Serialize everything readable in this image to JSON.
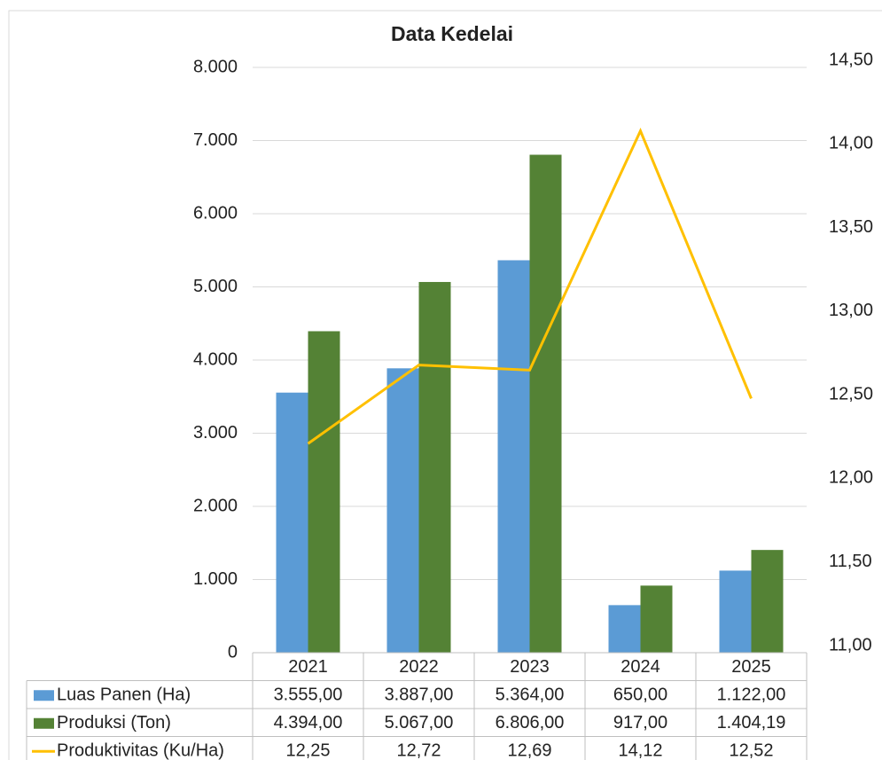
{
  "chart_data": {
    "type": "bar-line",
    "title": "Data Kedelai",
    "categories": [
      "2021",
      "2022",
      "2023",
      "2024",
      "2025"
    ],
    "series": [
      {
        "name": "Luas Panen (Ha)",
        "type": "bar",
        "color": "#5b9bd5",
        "values": [
          3555,
          3887,
          5364,
          650,
          1122
        ],
        "value_labels": [
          "3.555,00",
          "3.887,00",
          "5.364,00",
          "650,00",
          "1.122,00"
        ]
      },
      {
        "name": "Produksi (Ton)",
        "type": "bar",
        "color": "#548235",
        "values": [
          4394,
          5067,
          6806,
          917,
          1404.19
        ],
        "value_labels": [
          "4.394,00",
          "5.067,00",
          "6.806,00",
          "917,00",
          "1.404,19"
        ]
      },
      {
        "name": "Produktivitas (Ku/Ha)",
        "type": "line",
        "axis": "y2",
        "color": "#ffc000",
        "values": [
          12.25,
          12.72,
          12.69,
          14.12,
          12.52
        ],
        "value_labels": [
          "12,25",
          "12,72",
          "12,69",
          "14,12",
          "12,52"
        ]
      }
    ],
    "ylim": [
      0,
      8000
    ],
    "yticks": [
      0,
      {
        "value": 1000,
        "label": "1.000"
      },
      {
        "value": 2000,
        "label": "2.000"
      },
      {
        "value": 3000,
        "label": "3.000"
      },
      {
        "value": 4000,
        "label": "4.000"
      },
      {
        "value": 5000,
        "label": "5.000"
      },
      {
        "value": 6000,
        "label": "6.000"
      },
      {
        "value": 7000,
        "label": "7.000"
      },
      {
        "value": 8000,
        "label": "8.000"
      }
    ],
    "y2lim": [
      11,
      14.5
    ],
    "y2ticks": [
      {
        "value": 11,
        "label": "11,00"
      },
      {
        "value": 11.5,
        "label": "11,50"
      },
      {
        "value": 12,
        "label": "12,00"
      },
      {
        "value": 12.5,
        "label": "12,50"
      },
      {
        "value": 13,
        "label": "13,00"
      },
      {
        "value": 13.5,
        "label": "13,50"
      },
      {
        "value": 14,
        "label": "14,00"
      },
      {
        "value": 14.5,
        "label": "14,50"
      }
    ],
    "grid": true,
    "data_table": true
  }
}
